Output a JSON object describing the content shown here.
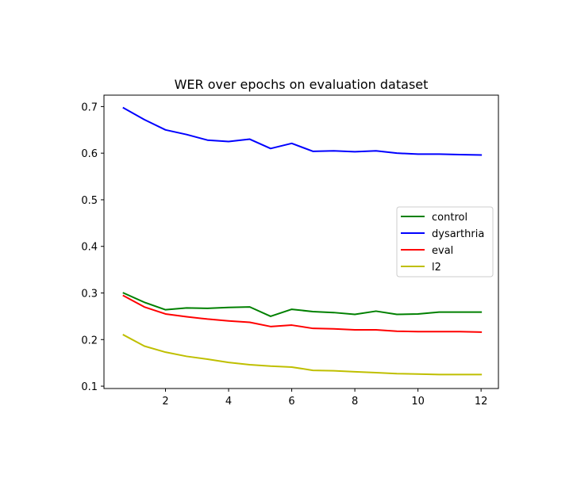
{
  "chart_data": {
    "type": "line",
    "title": "WER over epochs on evaluation dataset",
    "xlabel": "",
    "ylabel": "",
    "xlim": [
      0.05,
      12.55
    ],
    "ylim": [
      0.095,
      0.7245
    ],
    "xticks": [
      2,
      4,
      6,
      8,
      10,
      12
    ],
    "xtick_labels": [
      "2",
      "4",
      "6",
      "8",
      "10",
      "12"
    ],
    "yticks": [
      0.1,
      0.2,
      0.3,
      0.4,
      0.5,
      0.6,
      0.7
    ],
    "ytick_labels": [
      "0.1",
      "0.2",
      "0.3",
      "0.4",
      "0.5",
      "0.6",
      "0.7"
    ],
    "x": [
      0.67,
      1.33,
      2.0,
      2.67,
      3.33,
      4.0,
      4.67,
      5.33,
      6.0,
      6.67,
      7.33,
      8.0,
      8.67,
      9.33,
      10.0,
      10.67,
      11.33,
      12.0
    ],
    "series": [
      {
        "name": "control",
        "color": "#008000",
        "values": [
          0.3,
          0.28,
          0.264,
          0.268,
          0.267,
          0.269,
          0.27,
          0.25,
          0.265,
          0.26,
          0.258,
          0.254,
          0.261,
          0.254,
          0.255,
          0.259,
          0.259,
          0.259
        ]
      },
      {
        "name": "dysarthria",
        "color": "#0000ff",
        "values": [
          0.697,
          0.672,
          0.65,
          0.64,
          0.628,
          0.625,
          0.63,
          0.61,
          0.621,
          0.604,
          0.605,
          0.603,
          0.605,
          0.6,
          0.598,
          0.598,
          0.597,
          0.596
        ]
      },
      {
        "name": "eval",
        "color": "#ff0000",
        "values": [
          0.294,
          0.27,
          0.255,
          0.249,
          0.244,
          0.24,
          0.237,
          0.228,
          0.231,
          0.224,
          0.223,
          0.221,
          0.221,
          0.218,
          0.217,
          0.217,
          0.217,
          0.216
        ]
      },
      {
        "name": "l2",
        "color": "#bfbf00",
        "values": [
          0.21,
          0.186,
          0.173,
          0.164,
          0.158,
          0.151,
          0.146,
          0.143,
          0.141,
          0.134,
          0.133,
          0.131,
          0.129,
          0.127,
          0.126,
          0.125,
          0.125,
          0.125
        ]
      }
    ],
    "grid": false,
    "legend_location": "center-right"
  }
}
